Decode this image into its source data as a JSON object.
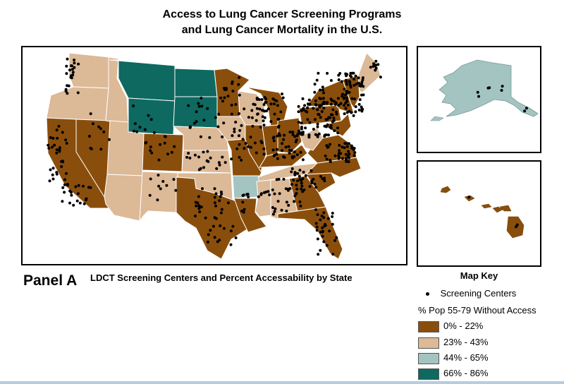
{
  "title_line1": "Access to Lung Cancer Screening Programs",
  "title_line2": "and Lung Cancer Mortality in the U.S.",
  "panel_label": "Panel A",
  "panel_caption": "LDCT Screening Centers and Percent Accessability by State",
  "key": {
    "title": "Map Key",
    "screening_label": "Screening Centers",
    "access_heading": "% Pop 55-79 Without Access",
    "classes": [
      {
        "label": "0% - 22%",
        "color": "#8a4e0c"
      },
      {
        "label": "23% - 43%",
        "color": "#dcb997"
      },
      {
        "label": "44% - 65%",
        "color": "#a3c4c0"
      },
      {
        "label": "66% - 86%",
        "color": "#0e6960"
      }
    ]
  },
  "colors": {
    "border": "#000000",
    "dot": "#000000",
    "state_outline": "#ffffff"
  }
}
